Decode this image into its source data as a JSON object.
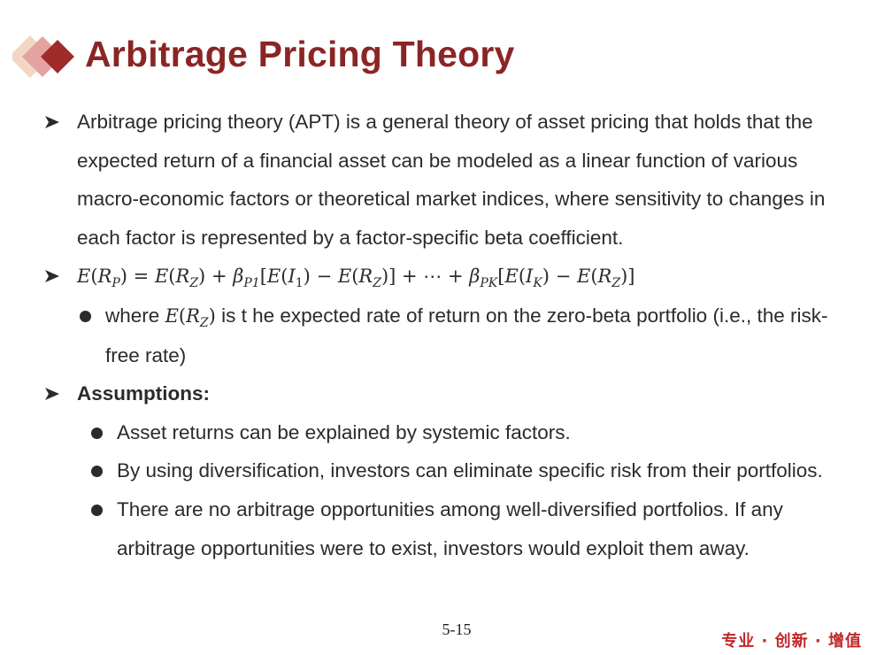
{
  "slide": {
    "title": "Arbitrage Pricing Theory",
    "page_number": "5-15",
    "brand_text": "专业 · 创新 · 增值",
    "accent_color": "#8b2525",
    "diamond_colors": [
      "#f3d7c3",
      "#e4a3a0",
      "#a12b2b"
    ]
  },
  "bullets": {
    "apt_definition": "Arbitrage pricing theory (APT) is a general theory of asset pricing that holds that the expected return of a financial asset can be modeled as a linear function of various macro-economic factors or theoretical market indices, where sensitivity to changes in each factor is represented by a factor-specific beta coefficient.",
    "where_prefix": "where",
    "where_suffix": "is t he expected rate of return on the zero-beta portfolio (i.e., the risk-free rate)",
    "assumptions_heading": "Assumptions:",
    "assumptions": [
      "Asset returns can be explained by systemic factors.",
      "By using diversification, investors can eliminate specific risk from their portfolios.",
      "There are no arbitrage opportunities among well-diversified portfolios. If any arbitrage opportunities were to exist, investors would exploit them away."
    ]
  }
}
